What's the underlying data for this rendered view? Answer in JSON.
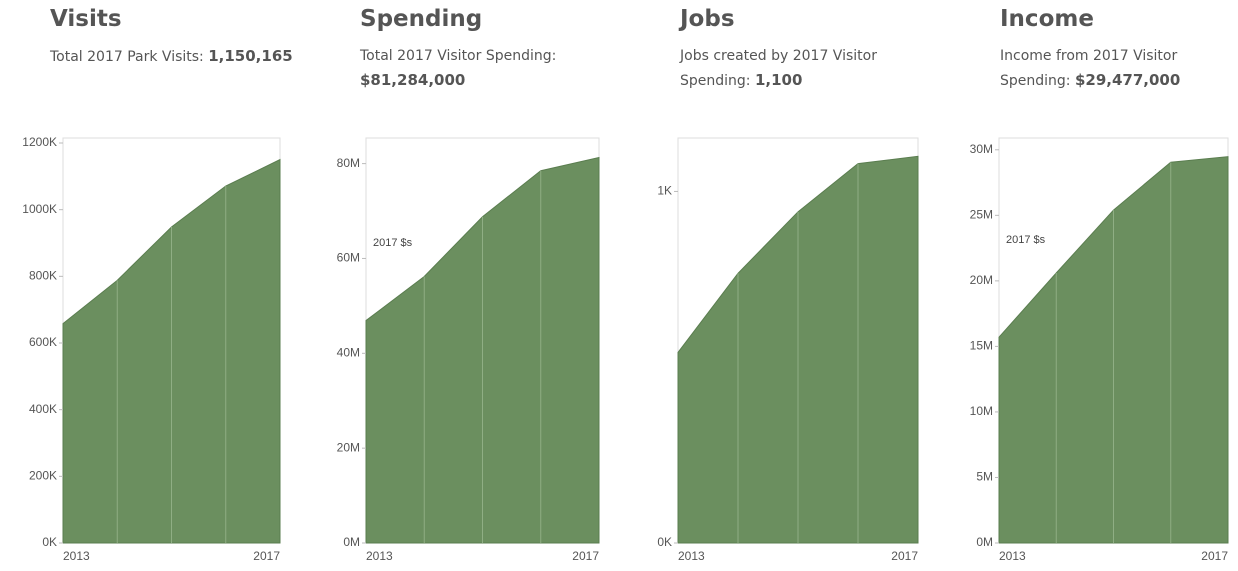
{
  "chart_data": [
    {
      "type": "area",
      "title": "Visits",
      "subtitle": "Total 2017 Park Visits:",
      "subtitle_value": "1,150,165",
      "x": [
        2013,
        2014,
        2015,
        2016,
        2017
      ],
      "xlim": [
        2013,
        2017
      ],
      "xticks": [
        2013,
        2017
      ],
      "values": [
        658000,
        788000,
        948000,
        1071000,
        1150165
      ],
      "color": "#6b8f5f",
      "ylim": [
        0,
        1215000
      ],
      "yticks": [
        {
          "value": 0,
          "label": "0K"
        },
        {
          "value": 200000,
          "label": "200K"
        },
        {
          "value": 400000,
          "label": "400K"
        },
        {
          "value": 600000,
          "label": "600K"
        },
        {
          "value": 800000,
          "label": "800K"
        },
        {
          "value": 1000000,
          "label": "1000K"
        },
        {
          "value": 1200000,
          "label": "1200K"
        }
      ]
    },
    {
      "type": "area",
      "title": "Spending",
      "subtitle": "Total 2017 Visitor Spending:",
      "subtitle_value": "$81,284,000",
      "annotation": "2017 $s",
      "x": [
        2013,
        2014,
        2015,
        2016,
        2017
      ],
      "xlim": [
        2013,
        2017
      ],
      "xticks": [
        2013,
        2017
      ],
      "values": [
        46900000,
        56200000,
        68800000,
        78500000,
        81284000
      ],
      "color": "#6b8f5f",
      "ylim": [
        0,
        85400000
      ],
      "yticks": [
        {
          "value": 0,
          "label": "0M"
        },
        {
          "value": 20000000,
          "label": "20M"
        },
        {
          "value": 40000000,
          "label": "40M"
        },
        {
          "value": 60000000,
          "label": "60M"
        },
        {
          "value": 80000000,
          "label": "80M"
        }
      ]
    },
    {
      "type": "area",
      "title": "Jobs",
      "subtitle": "Jobs created by 2017 Visitor Spending:",
      "subtitle_value": "1,100",
      "x": [
        2013,
        2014,
        2015,
        2016,
        2017
      ],
      "xlim": [
        2013,
        2017
      ],
      "xticks": [
        2013,
        2017
      ],
      "values": [
        542,
        767,
        942,
        1079,
        1100
      ],
      "color": "#6b8f5f",
      "ylim": [
        0,
        1152
      ],
      "yticks": [
        {
          "value": 0,
          "label": "0K"
        },
        {
          "value": 1000,
          "label": "1K"
        }
      ]
    },
    {
      "type": "area",
      "title": "Income",
      "subtitle": "Income from 2017 Visitor Spending:",
      "subtitle_value": "$29,477,000",
      "annotation": "2017 $s",
      "x": [
        2013,
        2014,
        2015,
        2016,
        2017
      ],
      "xlim": [
        2013,
        2017
      ],
      "xticks": [
        2013,
        2017
      ],
      "values": [
        15700000,
        20600000,
        25400000,
        29050000,
        29477000
      ],
      "color": "#6b8f5f",
      "ylim": [
        0,
        30900000
      ],
      "yticks": [
        {
          "value": 0,
          "label": "0M"
        },
        {
          "value": 5000000,
          "label": "5M"
        },
        {
          "value": 10000000,
          "label": "10M"
        },
        {
          "value": 15000000,
          "label": "15M"
        },
        {
          "value": 20000000,
          "label": "20M"
        },
        {
          "value": 25000000,
          "label": "25M"
        },
        {
          "value": 30000000,
          "label": "30M"
        }
      ]
    }
  ]
}
